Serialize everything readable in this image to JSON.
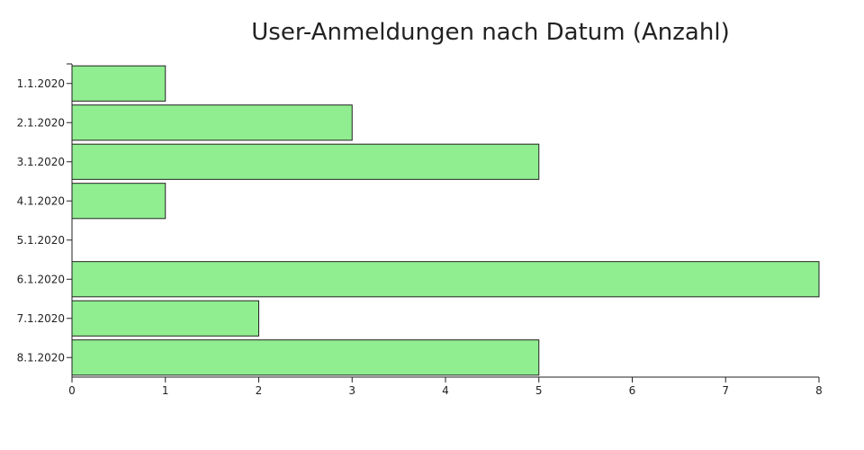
{
  "chart_data": {
    "type": "bar",
    "orientation": "horizontal",
    "title": "User-Anmeldungen nach Datum (Anzahl)",
    "xlabel": "",
    "ylabel": "",
    "categories": [
      "1.1.2020",
      "2.1.2020",
      "3.1.2020",
      "4.1.2020",
      "5.1.2020",
      "6.1.2020",
      "7.1.2020",
      "8.1.2020"
    ],
    "values": [
      1,
      3,
      5,
      1,
      0,
      8,
      2,
      5
    ],
    "xlim": [
      0,
      8
    ],
    "x_ticks": [
      0,
      1,
      2,
      3,
      4,
      5,
      6,
      7,
      8
    ],
    "grid": false,
    "colors": {
      "bar_fill": "#90ee90",
      "bar_stroke": "#222222",
      "axis": "#222222",
      "text": "#222222"
    }
  }
}
